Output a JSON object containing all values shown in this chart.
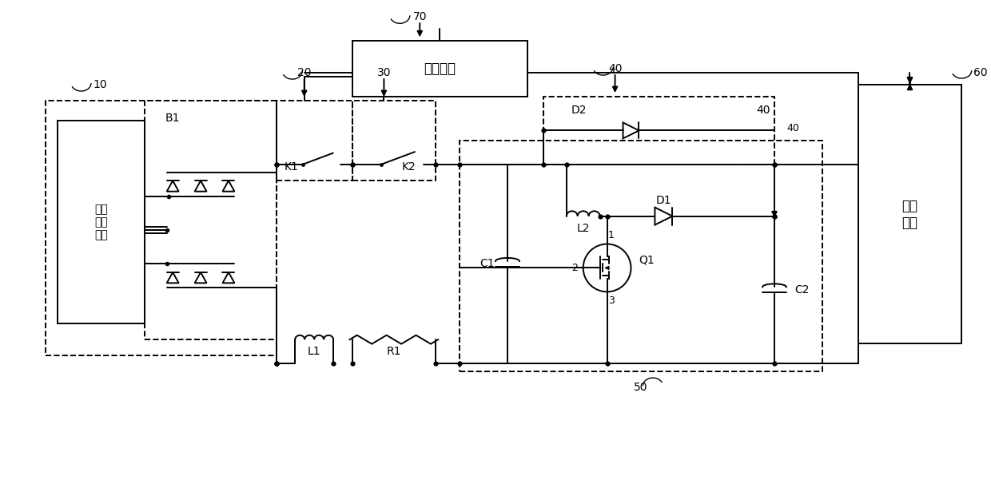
{
  "bg_color": "#ffffff",
  "lc": "#000000",
  "lw": 1.4,
  "fig_width": 12.4,
  "fig_height": 6.11,
  "labels": {
    "B1": "B1",
    "10": "10",
    "20": "20",
    "30": "30",
    "40": "40",
    "50": "50",
    "60": "60",
    "70": "70",
    "K1": "K1",
    "K2": "K2",
    "L1": "L1",
    "R1": "R1",
    "L2": "L2",
    "D1": "D1",
    "D2": "D2",
    "Q1": "Q1",
    "C1": "C1",
    "C2": "C2",
    "san_xiang": "三相\n交流\n输入",
    "kongzhi": "控制电路",
    "shuchu": "输出\n电路"
  }
}
